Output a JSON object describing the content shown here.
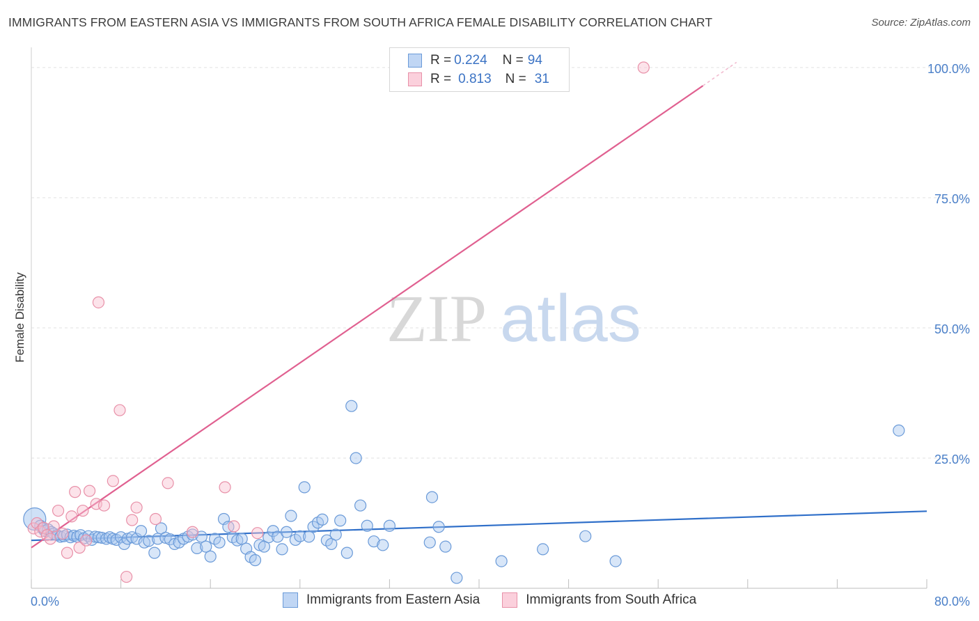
{
  "title": "IMMIGRANTS FROM EASTERN ASIA VS IMMIGRANTS FROM SOUTH AFRICA FEMALE DISABILITY CORRELATION CHART",
  "source": "Source: ZipAtlas.com",
  "watermark": {
    "part1": "ZIP",
    "part2": "atlas"
  },
  "legend": {
    "rows": [
      {
        "r_label": "R = ",
        "r_value": "0.224",
        "n_label": "N = ",
        "n_value": "94",
        "color": "#a8c8f0",
        "border": "#6a9ad8"
      },
      {
        "r_label": "R = ",
        "r_value": "0.813",
        "n_label": "N = ",
        "n_value": "31",
        "color": "#f8c0d0",
        "border": "#e890a8"
      }
    ]
  },
  "chart_data": {
    "type": "scatter",
    "title": "IMMIGRANTS FROM EASTERN ASIA VS IMMIGRANTS FROM SOUTH AFRICA FEMALE DISABILITY CORRELATION CHART",
    "xlabel": "",
    "ylabel": "Female Disability",
    "xlim": [
      0,
      80
    ],
    "ylim": [
      0,
      100
    ],
    "x_tick_labels": [
      "0.0%",
      "80.0%"
    ],
    "y_tick_labels": [
      "25.0%",
      "50.0%",
      "75.0%",
      "100.0%"
    ],
    "y_ticks": [
      25,
      50,
      75,
      100
    ],
    "grid": true,
    "legend_position": "top-center",
    "series": [
      {
        "name": "Immigrants from Eastern Asia",
        "color": "#6a9ad8",
        "fill": "#a8c8f0",
        "trend": {
          "x": [
            0,
            80
          ],
          "y": [
            9.2,
            14.8
          ],
          "color": "#2f6fc9"
        },
        "points": [
          [
            0.3,
            13.3
          ],
          [
            0.8,
            12.0
          ],
          [
            1.0,
            11.5
          ],
          [
            1.2,
            11.0
          ],
          [
            1.5,
            11.3
          ],
          [
            1.8,
            10.8
          ],
          [
            2.0,
            10.5
          ],
          [
            2.3,
            10.2
          ],
          [
            2.6,
            9.9
          ],
          [
            2.9,
            10.0
          ],
          [
            3.2,
            10.3
          ],
          [
            3.5,
            9.8
          ],
          [
            3.8,
            10.1
          ],
          [
            4.1,
            9.9
          ],
          [
            4.4,
            10.2
          ],
          [
            4.7,
            9.6
          ],
          [
            5.1,
            10.0
          ],
          [
            5.4,
            9.3
          ],
          [
            5.7,
            9.9
          ],
          [
            6.0,
            9.8
          ],
          [
            6.3,
            9.7
          ],
          [
            6.7,
            9.5
          ],
          [
            7.0,
            9.8
          ],
          [
            7.3,
            9.5
          ],
          [
            7.6,
            9.3
          ],
          [
            8.0,
            9.8
          ],
          [
            8.3,
            8.5
          ],
          [
            8.6,
            9.5
          ],
          [
            9.0,
            9.8
          ],
          [
            9.4,
            9.5
          ],
          [
            9.8,
            11.0
          ],
          [
            10.1,
            8.8
          ],
          [
            10.5,
            9.1
          ],
          [
            11.0,
            6.8
          ],
          [
            11.3,
            9.5
          ],
          [
            11.6,
            11.5
          ],
          [
            12.0,
            9.7
          ],
          [
            12.4,
            9.4
          ],
          [
            12.8,
            8.5
          ],
          [
            13.2,
            8.8
          ],
          [
            13.6,
            9.5
          ],
          [
            14.0,
            9.9
          ],
          [
            14.4,
            10.3
          ],
          [
            14.8,
            7.7
          ],
          [
            15.2,
            9.9
          ],
          [
            15.6,
            8.0
          ],
          [
            16.0,
            6.1
          ],
          [
            16.4,
            9.5
          ],
          [
            16.8,
            8.8
          ],
          [
            17.2,
            13.3
          ],
          [
            17.6,
            11.8
          ],
          [
            18.0,
            9.8
          ],
          [
            18.4,
            9.2
          ],
          [
            18.8,
            9.5
          ],
          [
            19.2,
            7.6
          ],
          [
            19.6,
            6.0
          ],
          [
            20.0,
            5.4
          ],
          [
            20.4,
            8.3
          ],
          [
            20.8,
            8.0
          ],
          [
            21.2,
            9.8
          ],
          [
            21.6,
            11.0
          ],
          [
            22.0,
            9.9
          ],
          [
            22.4,
            7.5
          ],
          [
            22.8,
            10.8
          ],
          [
            23.2,
            13.9
          ],
          [
            23.6,
            9.3
          ],
          [
            24.0,
            10.0
          ],
          [
            24.4,
            19.4
          ],
          [
            24.8,
            9.9
          ],
          [
            25.2,
            11.8
          ],
          [
            25.6,
            12.6
          ],
          [
            26.0,
            13.2
          ],
          [
            26.4,
            9.2
          ],
          [
            26.8,
            8.5
          ],
          [
            27.2,
            10.3
          ],
          [
            27.6,
            13.0
          ],
          [
            28.2,
            6.8
          ],
          [
            28.6,
            35.0
          ],
          [
            29.0,
            25.0
          ],
          [
            29.4,
            15.9
          ],
          [
            30.0,
            12.0
          ],
          [
            30.6,
            9.0
          ],
          [
            31.4,
            8.3
          ],
          [
            32.0,
            12.0
          ],
          [
            35.8,
            17.5
          ],
          [
            35.6,
            8.8
          ],
          [
            36.4,
            11.8
          ],
          [
            37.0,
            8.0
          ],
          [
            38.0,
            2.0
          ],
          [
            42.0,
            5.2
          ],
          [
            45.7,
            7.5
          ],
          [
            49.5,
            10.0
          ],
          [
            52.2,
            5.2
          ],
          [
            77.5,
            30.3
          ]
        ]
      },
      {
        "name": "Immigrants from South Africa",
        "color": "#e890a8",
        "fill": "#f8c0d0",
        "trend": {
          "x": [
            0,
            60
          ],
          "y": [
            7.8,
            96.5
          ],
          "color": "#e06090"
        },
        "points": [
          [
            0.2,
            11.5
          ],
          [
            0.5,
            12.5
          ],
          [
            0.8,
            10.9
          ],
          [
            1.1,
            11.6
          ],
          [
            1.4,
            10.2
          ],
          [
            1.7,
            9.5
          ],
          [
            2.0,
            11.9
          ],
          [
            2.4,
            14.9
          ],
          [
            2.8,
            10.5
          ],
          [
            3.2,
            6.8
          ],
          [
            3.6,
            13.8
          ],
          [
            3.9,
            18.5
          ],
          [
            4.3,
            7.8
          ],
          [
            4.6,
            14.9
          ],
          [
            4.9,
            9.2
          ],
          [
            5.2,
            18.7
          ],
          [
            5.8,
            16.2
          ],
          [
            6.0,
            54.9
          ],
          [
            6.5,
            15.9
          ],
          [
            7.3,
            20.6
          ],
          [
            7.9,
            34.2
          ],
          [
            8.5,
            2.2
          ],
          [
            9.0,
            13.1
          ],
          [
            9.4,
            15.5
          ],
          [
            11.1,
            13.3
          ],
          [
            12.2,
            20.2
          ],
          [
            14.4,
            10.8
          ],
          [
            17.3,
            19.4
          ],
          [
            18.1,
            11.9
          ],
          [
            20.2,
            10.6
          ],
          [
            54.7,
            100.0
          ]
        ]
      }
    ]
  }
}
